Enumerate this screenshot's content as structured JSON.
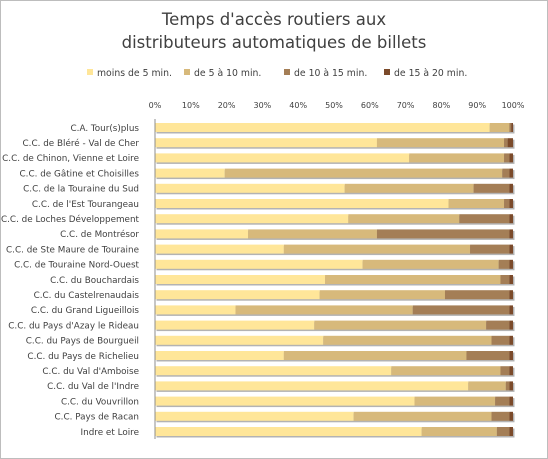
{
  "chart_data": {
    "type": "bar",
    "orientation": "horizontal",
    "stacked": "percent",
    "title_lines": [
      "Temps d'accès routiers aux",
      "distributeurs automatiques de billets"
    ],
    "categories": [
      "C.A. Tour(s)plus",
      "C.C. de Bléré - Val de Cher",
      "C.C. de Chinon, Vienne et Loire",
      "C.C. de Gâtine et Choisilles",
      "C.C. de la Touraine du Sud",
      "C.C. de l'Est Tourangeau",
      "C.C. de Loches Développement",
      "C.C. de Montrésor",
      "C.C. de Ste Maure de Touraine",
      "C.C. de Touraine Nord-Ouest",
      "C.C. du Bouchardais",
      "C.C. du Castelrenaudais",
      "C.C. du Grand Ligueillois",
      "C.C. du Pays d'Azay le Rideau",
      "C.C. du Pays de Bourgueil",
      "C.C. du Pays de Richelieu",
      "C.C. du Val d'Amboise",
      "C.C. du Val de l'Indre",
      "C.C. du Vouvrillon",
      "C.C. Pays de Racan",
      "Indre et Loire"
    ],
    "series": [
      {
        "name": "moins de 5 min.",
        "color": "#FFE699",
        "values": [
          93.5,
          62,
          71,
          19.5,
          53,
          82,
          54,
          26,
          36,
          58,
          47.5,
          46,
          22.5,
          44.5,
          47,
          36,
          66,
          87.5,
          72.5,
          55.5,
          74.5
        ]
      },
      {
        "name": "de 5 à 10 min.",
        "color": "#D7B97B",
        "values": [
          5.5,
          35.5,
          26.5,
          77.5,
          36,
          15.5,
          31,
          36,
          52,
          38,
          49,
          35,
          49.5,
          48,
          47,
          51,
          30.5,
          10.5,
          22.5,
          38.5,
          21
        ]
      },
      {
        "name": "de 10 à 15 min.",
        "color": "#A47E56",
        "values": [
          0.5,
          1,
          1.5,
          2,
          10,
          1.5,
          14,
          37,
          11,
          3,
          2.5,
          18,
          27,
          6.5,
          5,
          12,
          2.5,
          1,
          4,
          5,
          3.5
        ]
      },
      {
        "name": "de 15 à 20 min.",
        "color": "#7B4A2A",
        "values": [
          0.5,
          1.5,
          1,
          1,
          1,
          1,
          1,
          1,
          1,
          1,
          1,
          1,
          1,
          1,
          1,
          1,
          1,
          1,
          1,
          1,
          1
        ]
      }
    ],
    "x_ticks": [
      "0%",
      "10%",
      "20%",
      "30%",
      "40%",
      "50%",
      "60%",
      "70%",
      "80%",
      "90%",
      "100%"
    ],
    "xlim": [
      0,
      100
    ],
    "xaxis_position": "top",
    "legend_position": "top",
    "grid": false
  }
}
